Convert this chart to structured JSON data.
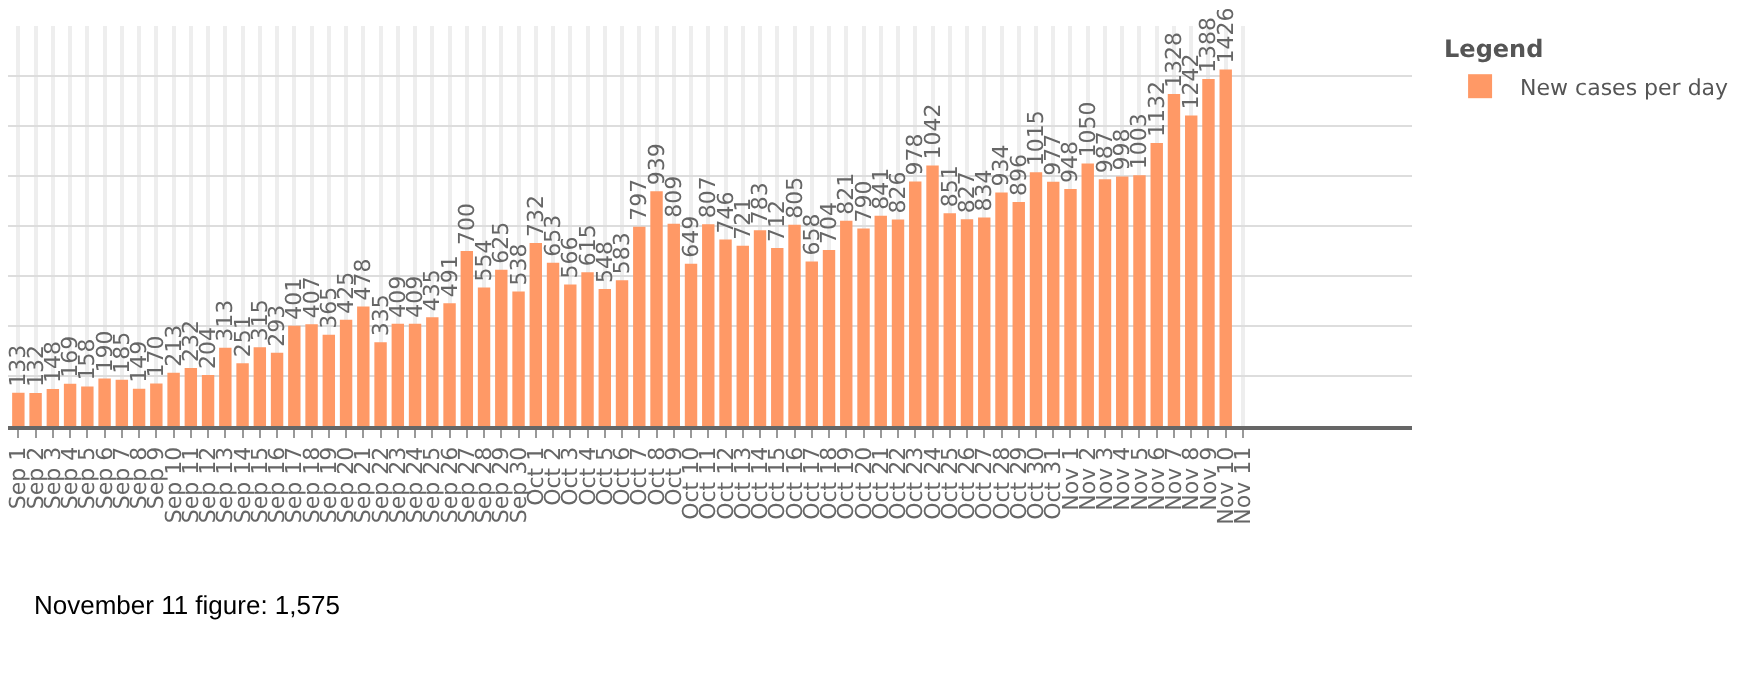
{
  "chart_data": {
    "type": "bar",
    "categories": [
      "Sep 1",
      "Sep 2",
      "Sep 3",
      "Sep 4",
      "Sep 5",
      "Sep 6",
      "Sep 7",
      "Sep 8",
      "Sep 9",
      "Sep 10",
      "Sep 11",
      "Sep 12",
      "Sep 13",
      "Sep 14",
      "Sep 15",
      "Sep 16",
      "Sep 17",
      "Sep 18",
      "Sep 19",
      "Sep 20",
      "Sep 21",
      "Sep 22",
      "Sep 23",
      "Sep 24",
      "Sep 25",
      "Sep 26",
      "Sep 27",
      "Sep 28",
      "Sep 29",
      "Sep 30",
      "Oct 1",
      "Oct 2",
      "Oct 3",
      "Oct 4",
      "Oct 5",
      "Oct 6",
      "Oct 7",
      "Oct 8",
      "Oct 9",
      "Oct 10",
      "Oct 11",
      "Oct 12",
      "Oct 13",
      "Oct 14",
      "Oct 15",
      "Oct 16",
      "Oct 17",
      "Oct 18",
      "Oct 19",
      "Oct 20",
      "Oct 21",
      "Oct 22",
      "Oct 23",
      "Oct 24",
      "Oct 25",
      "Oct 26",
      "Oct 27",
      "Oct 28",
      "Oct 29",
      "Oct 30",
      "Oct 31",
      "Nov 1",
      "Nov 2",
      "Nov 3",
      "Nov 4",
      "Nov 5",
      "Nov 6",
      "Nov 7",
      "Nov 8",
      "Nov 9",
      "Nov 10",
      "Nov 11"
    ],
    "series": [
      {
        "name": "New cases per day",
        "color": "#ff9966",
        "values": [
          133,
          132,
          148,
          169,
          158,
          190,
          185,
          149,
          170,
          213,
          232,
          204,
          313,
          251,
          315,
          293,
          401,
          407,
          365,
          425,
          478,
          335,
          409,
          409,
          435,
          491,
          700,
          554,
          625,
          538,
          732,
          653,
          566,
          615,
          548,
          583,
          797,
          939,
          809,
          649,
          807,
          746,
          721,
          783,
          712,
          805,
          658,
          704,
          821,
          790,
          841,
          826,
          978,
          1042,
          851,
          827,
          834,
          934,
          896,
          1015,
          977,
          948,
          1050,
          987,
          998,
          1003,
          1132,
          1328,
          1242,
          1388,
          1426,
          null
        ]
      }
    ],
    "data_labels": true,
    "ylim": [
      0,
      1600
    ],
    "yticks": [
      {
        "value": 0,
        "label": null
      },
      {
        "value": 200,
        "label": null
      },
      {
        "value": 400,
        "label": null
      },
      {
        "value": 600,
        "label": null
      },
      {
        "value": 800,
        "label": null
      },
      {
        "value": 1000,
        "label": null
      },
      {
        "value": 1200,
        "label": null
      },
      {
        "value": 1400,
        "label": null
      }
    ],
    "tick_labels": "x",
    "grid": true,
    "legend": "top right",
    "legend_title": "Legend",
    "annotations": [
      "November 11 figure: 1,575"
    ]
  }
}
